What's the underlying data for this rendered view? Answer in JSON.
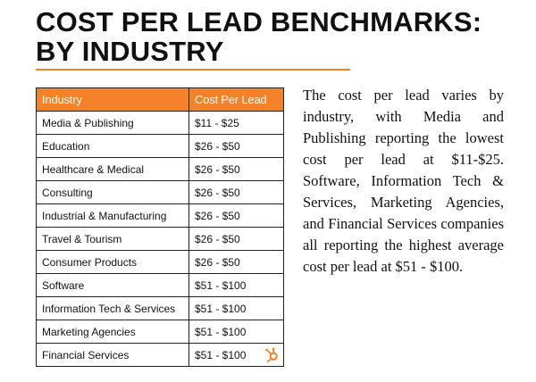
{
  "title": "COST PER LEAD BENCHMARKS: BY INDUSTRY",
  "table": {
    "headers": [
      "Industry",
      "Cost Per Lead"
    ],
    "rows": [
      {
        "industry": "Media & Publishing",
        "cost": "$11 - $25"
      },
      {
        "industry": "Education",
        "cost": "$26 - $50"
      },
      {
        "industry": "Healthcare & Medical",
        "cost": "$26 - $50"
      },
      {
        "industry": "Consulting",
        "cost": "$26 - $50"
      },
      {
        "industry": "Industrial & Manufacturing",
        "cost": "$26 - $50"
      },
      {
        "industry": "Travel & Tourism",
        "cost": "$26 - $50"
      },
      {
        "industry": "Consumer Products",
        "cost": "$26 - $50"
      },
      {
        "industry": "Software",
        "cost": "$51 - $100"
      },
      {
        "industry": "Information Tech & Services",
        "cost": "$51 - $100"
      },
      {
        "industry": "Marketing Agencies",
        "cost": "$51 - $100"
      },
      {
        "industry": "Financial Services",
        "cost": "$51 - $100"
      }
    ]
  },
  "description": "The cost per lead varies by industry, with Media and Publishing reporting the lowest cost per lead at $11-$25. Software, Information Tech & Services, Marketing Agencies, and Financial Services companies all reporting the highest average cost per lead at $51 - $100.",
  "logo_icon": "hubspot-sprocket-icon",
  "colors": {
    "accent": "#f4822a",
    "text": "#111111",
    "border": "#222222"
  }
}
